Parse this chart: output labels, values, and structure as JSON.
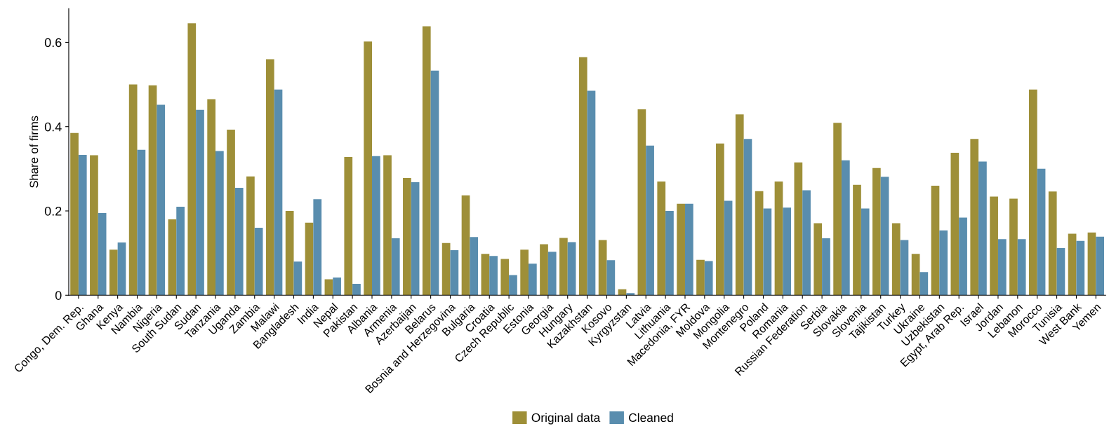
{
  "chart_data": {
    "type": "bar",
    "ylabel": "Share of firms",
    "categories": [
      "Congo, Dem. Rep.",
      "Ghana",
      "Kenya",
      "Nambia",
      "Nigeria",
      "South Sudan",
      "Sudan",
      "Tanzania",
      "Uganda",
      "Zambia",
      "Malawi",
      "Bangladesh",
      "India",
      "Nepal",
      "Pakistan",
      "Albania",
      "Armenia",
      "Azerbaijan",
      "Belarus",
      "Bosnia and Herzegovina",
      "Bulgaria",
      "Croatia",
      "Czech Republic",
      "Estonia",
      "Georgia",
      "Hungary",
      "Kazakhstan",
      "Kosovo",
      "Kyrgyzstan",
      "Latvia",
      "Lithuania",
      "Macedonia, FYR",
      "Moldova",
      "Mongolia",
      "Montenegro",
      "Poland",
      "Romania",
      "Russian Federation",
      "Serbia",
      "Slovakia",
      "Slovenia",
      "Tajikistan",
      "Turkey",
      "Ukraine",
      "Uzbekistan",
      "Egypt, Arab Rep.",
      "Israel",
      "Jordan",
      "Lebanon",
      "Morocco",
      "Tunisia",
      "West Bank",
      "Yemen"
    ],
    "series": [
      {
        "name": "Original data",
        "color": "#9e8f38",
        "values": [
          0.385,
          0.332,
          0.108,
          0.5,
          0.498,
          0.18,
          0.645,
          0.465,
          0.393,
          0.282,
          0.56,
          0.2,
          0.172,
          0.038,
          0.328,
          0.602,
          0.332,
          0.278,
          0.638,
          0.124,
          0.237,
          0.098,
          0.086,
          0.108,
          0.121,
          0.136,
          0.565,
          0.131,
          0.014,
          0.441,
          0.27,
          0.217,
          0.084,
          0.36,
          0.429,
          0.247,
          0.27,
          0.315,
          0.171,
          0.409,
          0.262,
          0.302,
          0.171,
          0.098,
          0.26,
          0.338,
          0.371,
          0.234,
          0.229,
          0.488,
          0.246,
          0.146,
          0.149
        ]
      },
      {
        "name": "Cleaned",
        "color": "#598dae",
        "values": [
          0.333,
          0.195,
          0.125,
          0.345,
          0.452,
          0.21,
          0.44,
          0.342,
          0.255,
          0.16,
          0.488,
          0.08,
          0.228,
          0.042,
          0.027,
          0.33,
          0.135,
          0.268,
          0.533,
          0.107,
          0.138,
          0.093,
          0.048,
          0.075,
          0.103,
          0.126,
          0.485,
          0.083,
          0.005,
          0.355,
          0.2,
          0.217,
          0.081,
          0.224,
          0.371,
          0.206,
          0.208,
          0.249,
          0.135,
          0.32,
          0.206,
          0.281,
          0.131,
          0.055,
          0.154,
          0.184,
          0.317,
          0.133,
          0.133,
          0.3,
          0.112,
          0.129,
          0.139
        ]
      }
    ],
    "ylim": [
      0,
      0.68
    ],
    "yticks": [
      0,
      0.2,
      0.4,
      0.6
    ],
    "grid": false,
    "legend": "bottom"
  }
}
